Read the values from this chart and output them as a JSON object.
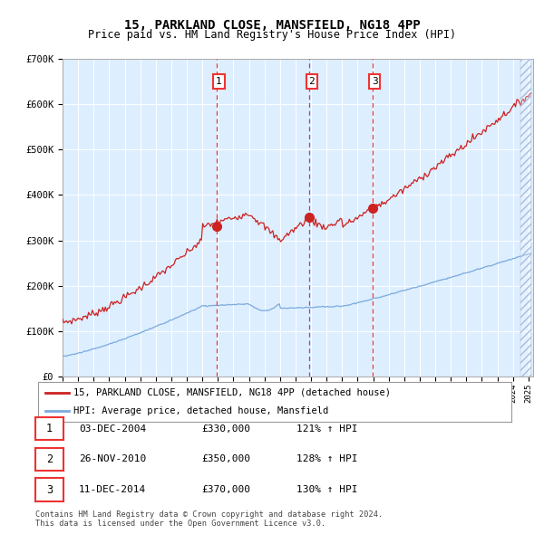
{
  "title": "15, PARKLAND CLOSE, MANSFIELD, NG18 4PP",
  "subtitle": "Price paid vs. HM Land Registry's House Price Index (HPI)",
  "hpi_color": "#7aaadd",
  "price_color": "#cc2222",
  "bg_color": "#ddeeff",
  "vline_color": "#ee3333",
  "marker_color": "#cc2222",
  "ylim": [
    0,
    700000
  ],
  "yticks": [
    0,
    100000,
    200000,
    300000,
    400000,
    500000,
    600000,
    700000
  ],
  "ytick_labels": [
    "£0",
    "£100K",
    "£200K",
    "£300K",
    "£400K",
    "£500K",
    "£600K",
    "£700K"
  ],
  "legend_property": "15, PARKLAND CLOSE, MANSFIELD, NG18 4PP (detached house)",
  "legend_hpi": "HPI: Average price, detached house, Mansfield",
  "transactions": [
    {
      "label": "1",
      "date": "03-DEC-2004",
      "price": 330000,
      "pct": "121%",
      "year": 2004.92
    },
    {
      "label": "2",
      "date": "26-NOV-2010",
      "price": 350000,
      "pct": "128%",
      "year": 2010.9
    },
    {
      "label": "3",
      "date": "11-DEC-2014",
      "price": 370000,
      "pct": "130%",
      "year": 2014.95
    }
  ],
  "footer": "Contains HM Land Registry data © Crown copyright and database right 2024.\nThis data is licensed under the Open Government Licence v3.0.",
  "hatch_start_year": 2024.5,
  "xlim": [
    1995,
    2025.3
  ],
  "xtick_start": 1995,
  "xtick_end": 2025
}
